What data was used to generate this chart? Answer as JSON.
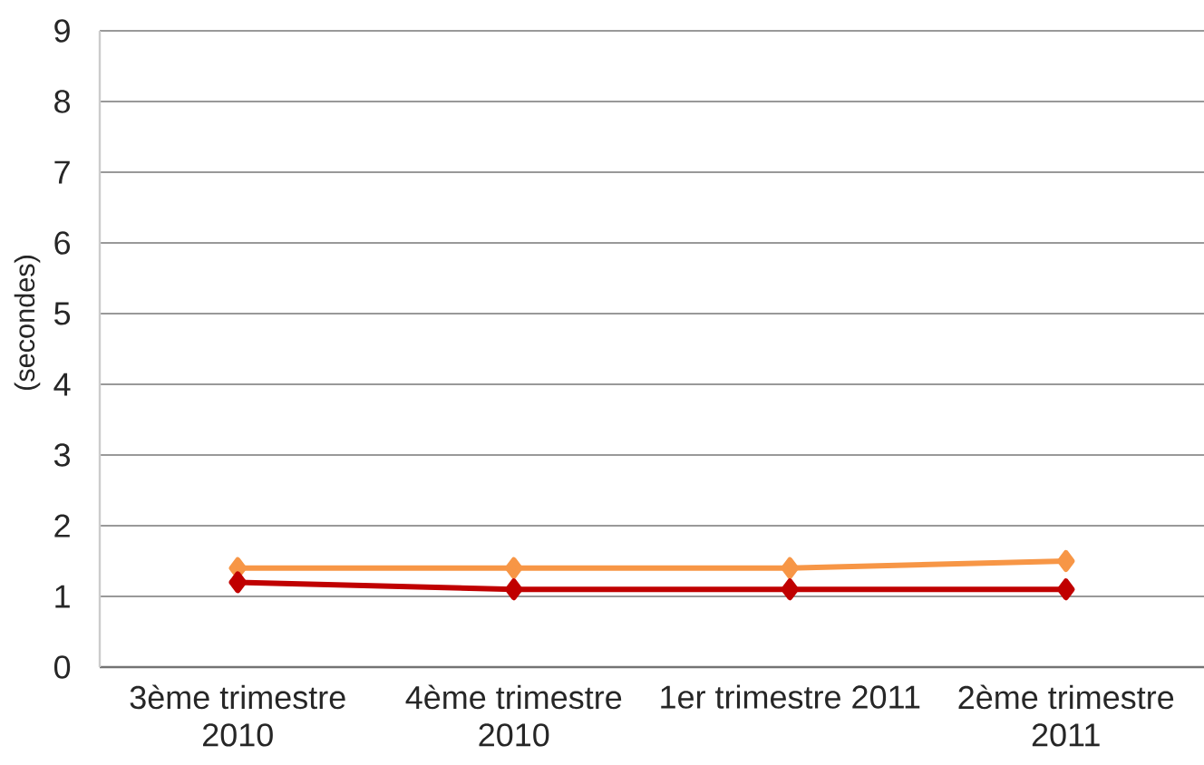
{
  "chart_data": {
    "type": "line",
    "ylabel": "(secondes)",
    "categories": [
      "3ème trimestre 2010",
      "4ème trimestre 2010",
      "1er trimestre 2011",
      "2ème trimestre 2011"
    ],
    "series": [
      {
        "color": "#f79646",
        "values": [
          1.4,
          1.4,
          1.4,
          1.5
        ]
      },
      {
        "color": "#c00000",
        "values": [
          1.2,
          1.1,
          1.1,
          1.1
        ]
      }
    ],
    "ylim": [
      0,
      9
    ],
    "yticks": [
      0,
      1,
      2,
      3,
      4,
      5,
      6,
      7,
      8,
      9
    ],
    "grid": "y",
    "marker": "diamond",
    "line_style": "solid"
  }
}
